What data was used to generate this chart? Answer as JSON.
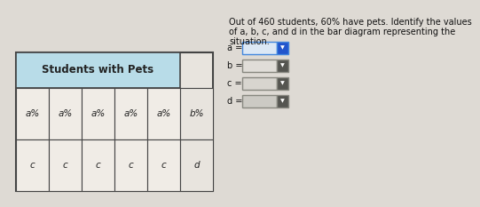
{
  "title": "Students with Pets",
  "header_bg": "#b8dce8",
  "cell_bg": "#f0ece6",
  "outer_bg": "#e8e4de",
  "page_bg": "#dedad4",
  "border_color": "#444444",
  "text_color": "#222222",
  "num_inner_cols": 5,
  "row1_inner_label": "a%",
  "row1_outer_label": "b%",
  "row2_inner_label": "c",
  "row2_outer_label": "d",
  "description_line1": "Out of 460 students, 60% have pets. Identify the values",
  "description_line2": "of a, b, c, and d in the bar diagram representing the",
  "description_line3": "situation.",
  "answer_labels": [
    "a =",
    "b =",
    "c =",
    "d ="
  ],
  "dropdown_box_bg": [
    "#dce8f5",
    "#e0ddd8",
    "#d8d5cf",
    "#cccac4"
  ],
  "dropdown_arrow_bg": [
    "#2255cc",
    "#555550",
    "#555550",
    "#555550"
  ],
  "dropdown_border": [
    "#4488dd",
    "#888880",
    "#888880",
    "#888880"
  ],
  "fig_width": 5.0,
  "fig_height": 2.13
}
